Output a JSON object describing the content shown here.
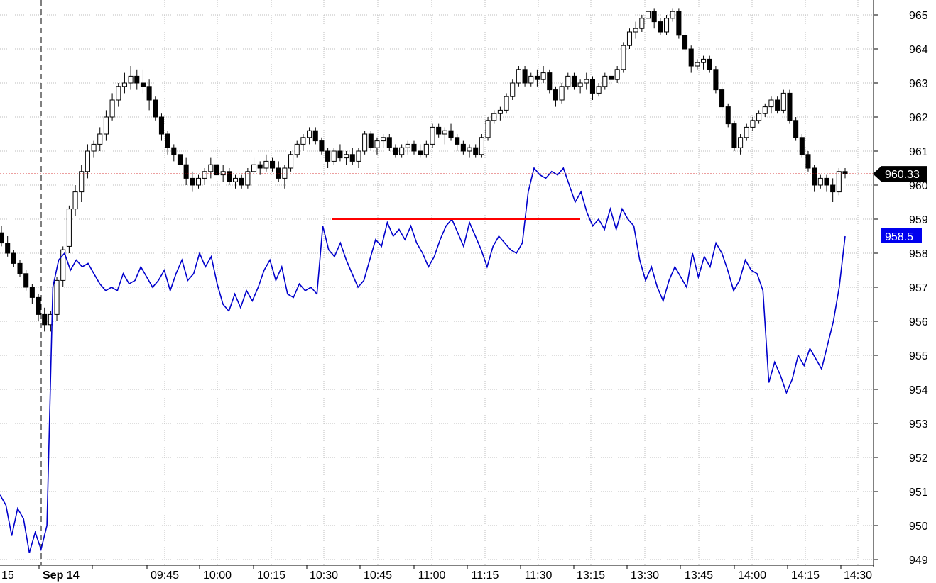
{
  "chart_data": {
    "type": "line",
    "subtype": "candlestick with overlaid line",
    "grid": true,
    "y_axis": {
      "position": "right",
      "ylim": [
        948.8,
        965.5
      ],
      "ticks": [
        965,
        964,
        963,
        962,
        961,
        960,
        959,
        958,
        957,
        956,
        955,
        954,
        953,
        952,
        951,
        950,
        949
      ]
    },
    "x_axis": {
      "date_label": "Sep 14",
      "tick_labels": [
        "15",
        "09:45",
        "10:00",
        "10:15",
        "10:30",
        "10:45",
        "11:00",
        "11:15",
        "11:30",
        "13:15",
        "13:30",
        "13:45",
        "14:00",
        "14:15",
        "14:30"
      ]
    },
    "colors": {
      "candle": "#000000",
      "line": "#0000cc",
      "reference_line": "#ff0000",
      "last_price_line": "#cc0000",
      "line_tag_bg": "#0000ee",
      "price_tag_bg": "#000000",
      "grid": "#bdbdbd"
    },
    "last_price": 960.33,
    "last_price_label": "960.33",
    "line_last_value": 958.5,
    "line_last_label": "958.5",
    "reference_level": 959.0,
    "candles": [
      [
        958.6,
        958.8,
        958.2,
        958.3
      ],
      [
        958.3,
        958.5,
        957.9,
        958.0
      ],
      [
        958.0,
        958.1,
        957.6,
        957.7
      ],
      [
        957.7,
        957.8,
        957.3,
        957.4
      ],
      [
        957.4,
        957.5,
        956.9,
        957.0
      ],
      [
        957.0,
        957.1,
        956.5,
        956.7
      ],
      [
        956.7,
        956.8,
        956.0,
        956.2
      ],
      [
        956.2,
        956.4,
        955.7,
        955.9
      ],
      [
        955.9,
        956.3,
        955.7,
        956.2
      ],
      [
        956.2,
        957.3,
        956.0,
        957.2
      ],
      [
        957.2,
        958.2,
        957.0,
        958.1
      ],
      [
        958.2,
        959.4,
        958.0,
        959.3
      ],
      [
        959.3,
        960.0,
        959.1,
        959.8
      ],
      [
        959.8,
        960.6,
        959.5,
        960.4
      ],
      [
        960.4,
        961.2,
        960.2,
        961.0
      ],
      [
        961.0,
        961.3,
        960.8,
        961.2
      ],
      [
        961.2,
        961.7,
        961.0,
        961.5
      ],
      [
        961.5,
        962.2,
        961.3,
        962.0
      ],
      [
        962.0,
        962.7,
        961.9,
        962.5
      ],
      [
        962.5,
        963.0,
        962.3,
        962.9
      ],
      [
        962.9,
        963.3,
        962.7,
        963.0
      ],
      [
        963.0,
        963.5,
        962.8,
        963.2
      ],
      [
        963.2,
        963.4,
        962.8,
        963.0
      ],
      [
        963.0,
        963.4,
        962.7,
        962.9
      ],
      [
        962.9,
        963.1,
        962.2,
        962.5
      ],
      [
        962.5,
        962.6,
        961.9,
        962.0
      ],
      [
        962.0,
        962.1,
        961.3,
        961.5
      ],
      [
        961.5,
        961.6,
        960.9,
        961.1
      ],
      [
        961.1,
        961.2,
        960.7,
        960.9
      ],
      [
        960.9,
        961.0,
        960.5,
        960.6
      ],
      [
        960.6,
        960.8,
        960.0,
        960.2
      ],
      [
        960.2,
        960.4,
        959.8,
        960.0
      ],
      [
        960.0,
        960.3,
        959.9,
        960.2
      ],
      [
        960.2,
        960.5,
        960.0,
        960.4
      ],
      [
        960.4,
        960.8,
        960.2,
        960.6
      ],
      [
        960.6,
        960.7,
        960.2,
        960.3
      ],
      [
        960.3,
        960.6,
        960.1,
        960.4
      ],
      [
        960.4,
        960.5,
        960.0,
        960.1
      ],
      [
        960.1,
        960.3,
        959.9,
        960.2
      ],
      [
        960.2,
        960.3,
        959.9,
        960.0
      ],
      [
        960.0,
        960.5,
        959.9,
        960.4
      ],
      [
        960.4,
        960.8,
        960.3,
        960.6
      ],
      [
        960.6,
        960.7,
        960.3,
        960.5
      ],
      [
        960.5,
        960.9,
        960.4,
        960.7
      ],
      [
        960.7,
        960.8,
        960.4,
        960.5
      ],
      [
        960.5,
        960.7,
        960.1,
        960.2
      ],
      [
        960.2,
        960.6,
        959.9,
        960.5
      ],
      [
        960.5,
        961.0,
        960.4,
        960.9
      ],
      [
        960.9,
        961.3,
        960.8,
        961.2
      ],
      [
        961.2,
        961.5,
        961.0,
        961.4
      ],
      [
        961.4,
        961.7,
        961.2,
        961.6
      ],
      [
        961.6,
        961.7,
        961.2,
        961.3
      ],
      [
        961.3,
        961.4,
        960.9,
        961.0
      ],
      [
        961.0,
        961.1,
        960.5,
        960.7
      ],
      [
        960.7,
        961.1,
        960.6,
        961.0
      ],
      [
        961.0,
        961.2,
        960.7,
        960.8
      ],
      [
        960.8,
        961.0,
        960.6,
        960.9
      ],
      [
        960.9,
        961.1,
        960.6,
        960.7
      ],
      [
        960.7,
        961.1,
        960.5,
        961.0
      ],
      [
        961.0,
        961.6,
        960.9,
        961.5
      ],
      [
        961.5,
        961.6,
        961.0,
        961.1
      ],
      [
        961.1,
        961.4,
        960.9,
        961.3
      ],
      [
        961.3,
        961.5,
        961.1,
        961.4
      ],
      [
        961.4,
        961.5,
        961.0,
        961.1
      ],
      [
        961.1,
        961.2,
        960.8,
        960.9
      ],
      [
        960.9,
        961.2,
        960.8,
        961.1
      ],
      [
        961.1,
        961.3,
        960.9,
        961.2
      ],
      [
        961.2,
        961.3,
        960.9,
        961.0
      ],
      [
        961.0,
        961.2,
        960.8,
        960.9
      ],
      [
        960.9,
        961.3,
        960.8,
        961.2
      ],
      [
        961.2,
        961.8,
        961.1,
        961.7
      ],
      [
        961.7,
        961.8,
        961.4,
        961.5
      ],
      [
        961.5,
        961.7,
        961.2,
        961.6
      ],
      [
        961.6,
        961.8,
        961.3,
        961.4
      ],
      [
        961.4,
        961.5,
        961.0,
        961.2
      ],
      [
        961.2,
        961.3,
        960.9,
        961.0
      ],
      [
        961.0,
        961.2,
        960.8,
        961.1
      ],
      [
        961.1,
        961.2,
        960.8,
        960.9
      ],
      [
        960.9,
        961.5,
        960.8,
        961.4
      ],
      [
        961.4,
        962.0,
        961.3,
        961.9
      ],
      [
        961.9,
        962.2,
        961.8,
        962.1
      ],
      [
        962.1,
        962.3,
        961.9,
        962.2
      ],
      [
        962.2,
        962.7,
        962.1,
        962.6
      ],
      [
        962.6,
        963.1,
        962.5,
        963.0
      ],
      [
        963.0,
        963.5,
        962.9,
        963.4
      ],
      [
        963.4,
        963.5,
        962.9,
        963.0
      ],
      [
        963.0,
        963.3,
        962.9,
        963.2
      ],
      [
        963.2,
        963.4,
        962.9,
        963.1
      ],
      [
        963.1,
        963.5,
        963.0,
        963.3
      ],
      [
        963.3,
        963.4,
        962.7,
        962.8
      ],
      [
        962.8,
        962.9,
        962.3,
        962.5
      ],
      [
        962.5,
        963.0,
        962.4,
        962.9
      ],
      [
        962.9,
        963.3,
        962.8,
        963.2
      ],
      [
        963.2,
        963.3,
        962.8,
        962.9
      ],
      [
        962.9,
        963.1,
        962.7,
        963.0
      ],
      [
        963.0,
        963.3,
        962.8,
        963.1
      ],
      [
        963.1,
        963.2,
        962.5,
        962.7
      ],
      [
        962.7,
        963.0,
        962.6,
        962.9
      ],
      [
        962.9,
        963.3,
        962.8,
        963.2
      ],
      [
        963.2,
        963.4,
        962.9,
        963.1
      ],
      [
        963.1,
        963.5,
        963.0,
        963.4
      ],
      [
        963.4,
        964.2,
        963.3,
        964.1
      ],
      [
        964.1,
        964.6,
        964.0,
        964.5
      ],
      [
        964.5,
        964.8,
        964.3,
        964.6
      ],
      [
        964.6,
        965.0,
        964.5,
        964.9
      ],
      [
        964.9,
        965.2,
        964.8,
        965.1
      ],
      [
        965.1,
        965.2,
        964.6,
        964.8
      ],
      [
        964.8,
        964.9,
        964.4,
        964.5
      ],
      [
        964.5,
        965.0,
        964.4,
        964.9
      ],
      [
        964.9,
        965.2,
        964.8,
        965.1
      ],
      [
        965.1,
        965.2,
        964.3,
        964.4
      ],
      [
        964.4,
        964.5,
        963.9,
        964.0
      ],
      [
        964.0,
        964.1,
        963.3,
        963.5
      ],
      [
        963.5,
        963.7,
        963.4,
        963.6
      ],
      [
        963.6,
        963.8,
        963.4,
        963.7
      ],
      [
        963.7,
        963.8,
        963.3,
        963.4
      ],
      [
        963.4,
        963.5,
        962.7,
        962.8
      ],
      [
        962.8,
        962.9,
        962.2,
        962.3
      ],
      [
        962.3,
        962.4,
        961.7,
        961.8
      ],
      [
        961.8,
        961.9,
        961.0,
        961.1
      ],
      [
        961.1,
        961.5,
        960.9,
        961.4
      ],
      [
        961.4,
        961.8,
        961.3,
        961.7
      ],
      [
        961.7,
        962.0,
        961.6,
        961.9
      ],
      [
        961.9,
        962.2,
        961.8,
        962.1
      ],
      [
        962.1,
        962.4,
        962.0,
        962.3
      ],
      [
        962.3,
        962.6,
        962.1,
        962.5
      ],
      [
        962.5,
        962.6,
        962.1,
        962.2
      ],
      [
        962.2,
        962.8,
        962.1,
        962.7
      ],
      [
        962.7,
        962.8,
        961.8,
        961.9
      ],
      [
        961.9,
        962.0,
        961.3,
        961.4
      ],
      [
        961.4,
        961.5,
        960.8,
        960.9
      ],
      [
        960.9,
        961.0,
        960.4,
        960.5
      ],
      [
        960.5,
        960.6,
        959.8,
        960.0
      ],
      [
        960.0,
        960.3,
        959.9,
        960.2
      ],
      [
        960.2,
        960.3,
        959.8,
        960.0
      ],
      [
        960.0,
        960.2,
        959.5,
        959.8
      ],
      [
        959.8,
        960.5,
        959.7,
        960.4
      ],
      [
        960.4,
        960.5,
        960.2,
        960.33
      ]
    ],
    "line_series": [
      950.9,
      950.6,
      949.7,
      950.5,
      950.2,
      949.2,
      949.8,
      949.3,
      950.0,
      957.0,
      957.8,
      958.0,
      957.5,
      957.8,
      957.6,
      957.7,
      957.4,
      957.1,
      956.9,
      957.0,
      956.9,
      957.4,
      957.1,
      957.2,
      957.6,
      957.3,
      957.0,
      957.2,
      957.5,
      956.9,
      957.4,
      957.8,
      957.2,
      957.4,
      958.0,
      957.6,
      957.9,
      957.1,
      956.5,
      956.3,
      956.8,
      956.4,
      956.9,
      956.6,
      957.0,
      957.5,
      957.8,
      957.2,
      957.6,
      956.8,
      956.7,
      957.1,
      956.9,
      957.0,
      956.8,
      958.8,
      958.1,
      957.9,
      958.3,
      957.8,
      957.4,
      957.0,
      957.2,
      957.8,
      958.4,
      958.2,
      958.9,
      958.5,
      958.7,
      958.4,
      958.8,
      958.3,
      958.0,
      957.6,
      957.9,
      958.4,
      958.8,
      959.0,
      958.6,
      958.2,
      958.9,
      958.5,
      958.1,
      957.6,
      958.2,
      958.5,
      958.3,
      958.1,
      958.0,
      958.3,
      959.8,
      960.5,
      960.3,
      960.2,
      960.4,
      960.3,
      960.5,
      960.0,
      959.5,
      959.8,
      959.2,
      958.8,
      959.0,
      958.7,
      959.3,
      958.7,
      959.3,
      959.0,
      958.8,
      957.8,
      957.2,
      957.6,
      957.0,
      956.6,
      957.2,
      957.6,
      957.3,
      957.0,
      958.0,
      957.3,
      957.9,
      957.6,
      958.3,
      958.0,
      957.5,
      956.9,
      957.2,
      957.8,
      957.5,
      957.4,
      956.9,
      954.2,
      954.8,
      954.4,
      953.9,
      954.3,
      955.0,
      954.7,
      955.2,
      954.9,
      954.6,
      955.3,
      956.0,
      957.0,
      958.5
    ]
  }
}
